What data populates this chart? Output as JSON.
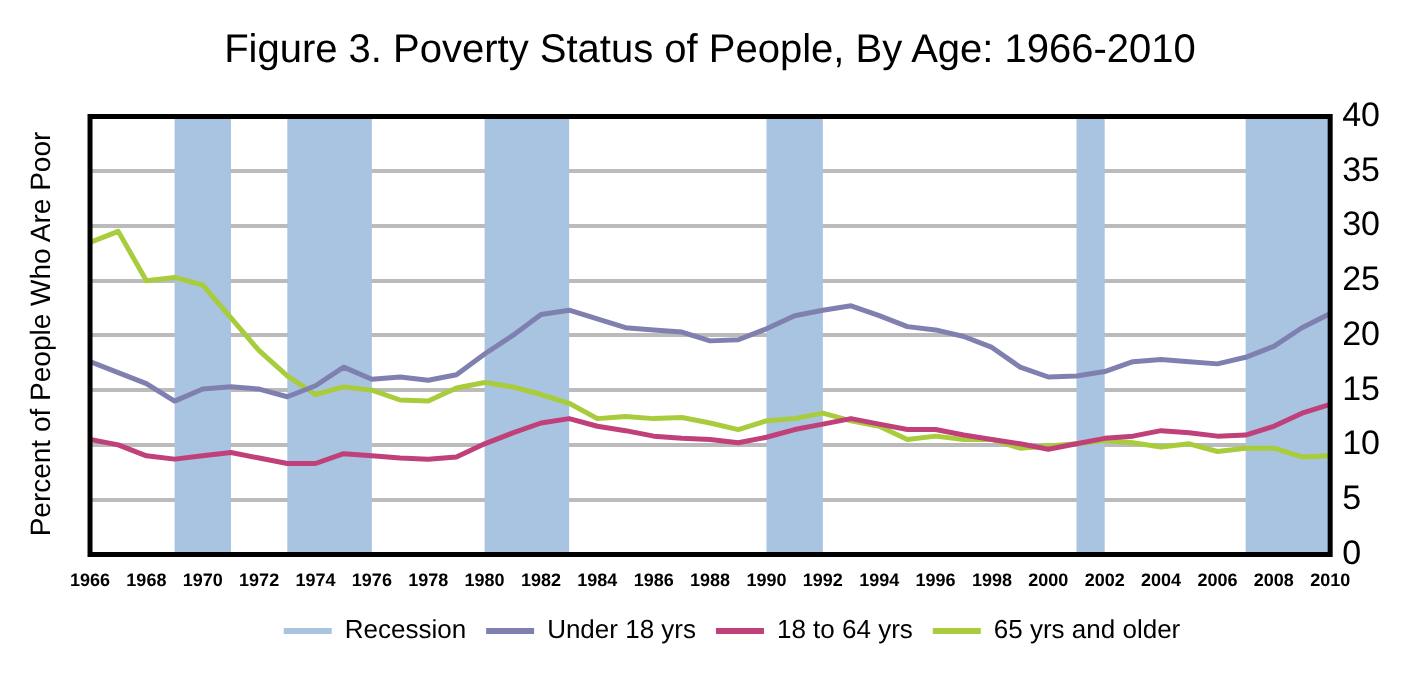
{
  "chart_data": {
    "type": "line",
    "title": "Figure 3. Poverty Status of People, By Age: 1966-2010",
    "ylabel": "Percent of People Who Are Poor",
    "x": [
      1966,
      1967,
      1968,
      1969,
      1970,
      1971,
      1972,
      1973,
      1974,
      1975,
      1976,
      1977,
      1978,
      1979,
      1980,
      1981,
      1982,
      1983,
      1984,
      1985,
      1986,
      1987,
      1988,
      1989,
      1990,
      1991,
      1992,
      1993,
      1994,
      1995,
      1996,
      1997,
      1998,
      1999,
      2000,
      2001,
      2002,
      2003,
      2004,
      2005,
      2006,
      2007,
      2008,
      2009,
      2010
    ],
    "series": [
      {
        "name": "Under 18 yrs",
        "color": "#8080b0",
        "values": [
          17.6,
          16.6,
          15.6,
          14.0,
          15.1,
          15.3,
          15.1,
          14.4,
          15.4,
          17.1,
          16.0,
          16.2,
          15.9,
          16.4,
          18.3,
          20.0,
          21.9,
          22.3,
          21.5,
          20.7,
          20.5,
          20.3,
          19.5,
          19.6,
          20.6,
          21.8,
          22.3,
          22.7,
          21.8,
          20.8,
          20.5,
          19.9,
          18.9,
          17.1,
          16.2,
          16.3,
          16.7,
          17.6,
          17.8,
          17.6,
          17.4,
          18.0,
          19.0,
          20.7,
          22.0
        ]
      },
      {
        "name": "18 to 64 yrs",
        "color": "#c0407a",
        "values": [
          10.5,
          10.0,
          9.0,
          8.7,
          9.0,
          9.3,
          8.8,
          8.3,
          8.3,
          9.2,
          9.0,
          8.8,
          8.7,
          8.9,
          10.1,
          11.1,
          12.0,
          12.4,
          11.7,
          11.3,
          10.8,
          10.6,
          10.5,
          10.2,
          10.7,
          11.4,
          11.9,
          12.4,
          11.9,
          11.4,
          11.4,
          10.9,
          10.5,
          10.1,
          9.6,
          10.1,
          10.6,
          10.8,
          11.3,
          11.1,
          10.8,
          10.9,
          11.7,
          12.9,
          13.7
        ]
      },
      {
        "name": "65 yrs and older",
        "color": "#a8cc3c",
        "values": [
          28.5,
          29.5,
          25.0,
          25.3,
          24.6,
          21.6,
          18.6,
          16.3,
          14.6,
          15.3,
          15.0,
          14.1,
          14.0,
          15.2,
          15.7,
          15.3,
          14.6,
          13.8,
          12.4,
          12.6,
          12.4,
          12.5,
          12.0,
          11.4,
          12.2,
          12.4,
          12.9,
          12.2,
          11.7,
          10.5,
          10.8,
          10.5,
          10.5,
          9.7,
          9.9,
          10.1,
          10.4,
          10.2,
          9.8,
          10.1,
          9.4,
          9.7,
          9.7,
          8.9,
          9.0
        ]
      }
    ],
    "bands": [
      {
        "axis": "x",
        "from": 1969,
        "to": 1971,
        "label": "Recession",
        "color": "#a8c4e0"
      },
      {
        "axis": "x",
        "from": 1973,
        "to": 1976,
        "color": "#a8c4e0"
      },
      {
        "axis": "x",
        "from": 1980,
        "to": 1983,
        "color": "#a8c4e0"
      },
      {
        "axis": "x",
        "from": 1990,
        "to": 1992,
        "color": "#a8c4e0"
      },
      {
        "axis": "x",
        "from": 2001,
        "to": 2002,
        "color": "#a8c4e0"
      },
      {
        "axis": "x",
        "from": 2007,
        "to": 2010,
        "color": "#a8c4e0"
      }
    ],
    "xlim": [
      1966,
      2010
    ],
    "xticks": [
      1966,
      1968,
      1970,
      1972,
      1974,
      1976,
      1978,
      1980,
      1982,
      1984,
      1986,
      1988,
      1990,
      1992,
      1994,
      1996,
      1998,
      2000,
      2002,
      2004,
      2006,
      2008,
      2010
    ],
    "ylim": [
      0,
      40
    ],
    "yticks": [
      0,
      5,
      10,
      15,
      20,
      25,
      30,
      35,
      40
    ],
    "grid": "y",
    "legend": "bottom",
    "marker": "none",
    "line_style": "solid"
  }
}
